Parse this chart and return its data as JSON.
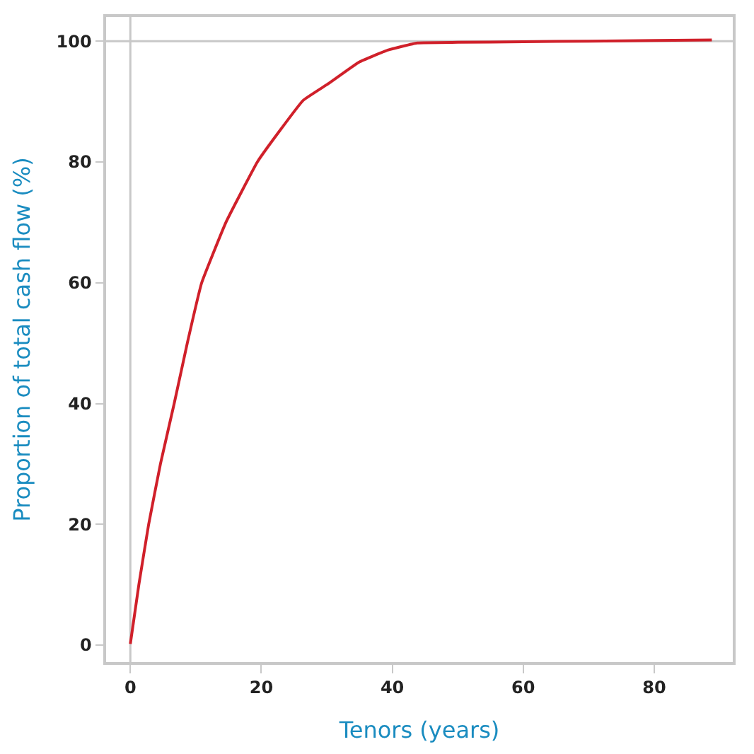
{
  "chart_data": {
    "type": "line",
    "xlabel": "Tenors (years)",
    "ylabel": "Proportion of total cash flow (%)",
    "x": [
      0,
      1.3,
      2.8,
      4.6,
      6.7,
      8.7,
      10.9,
      14.6,
      19.4,
      22.7,
      26.4,
      30.3,
      34.9,
      39.3,
      43.8,
      50,
      60,
      70,
      80,
      88.8
    ],
    "series": [
      {
        "color": "#d0202a",
        "values": [
          0.2,
          10,
          20,
          30,
          40,
          50,
          60,
          70,
          80,
          85,
          90.2,
          93,
          96.5,
          98.5,
          99.7,
          99.8,
          99.9,
          100,
          100.1,
          100.2
        ]
      }
    ],
    "xlim": [
      -3.7,
      92
    ],
    "ylim": [
      -2.8,
      104
    ],
    "xticks": [
      0,
      20,
      40,
      60,
      80
    ],
    "yticks": [
      0,
      20,
      40,
      60,
      80,
      100
    ],
    "ref_lines": [
      {
        "axis": "x",
        "value": 0,
        "color": "#c8c8c8"
      },
      {
        "axis": "y",
        "value": 100,
        "color": "#c8c8c8"
      }
    ],
    "grid": false,
    "marker": "none",
    "line_style": "solid"
  }
}
